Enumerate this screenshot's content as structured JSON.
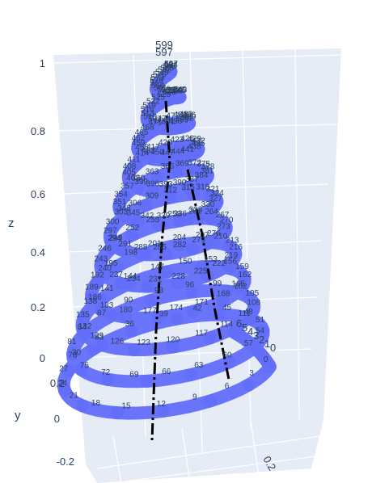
{
  "chart_data": {
    "type": "scatter3d",
    "point_labels": "index 0..599",
    "point_count": 600,
    "z_range": [
      0,
      1
    ],
    "z_ticks": [
      "0",
      "0.2",
      "0.4",
      "0.6",
      "0.8",
      "1"
    ],
    "y_ticks": [
      "-0.2",
      "0",
      "0.2"
    ],
    "x_ticks": [
      "0.2"
    ],
    "z_axis_title": "z",
    "y_axis_title": "y",
    "x_axis_title": "",
    "top_labels": [
      "599",
      "597"
    ],
    "right_end_labels": [
      "6",
      "5",
      "4",
      "3",
      "2",
      "1",
      "0"
    ],
    "bottom_labels": [
      "5",
      "5",
      "4",
      "5",
      "5",
      "4",
      "6",
      "5",
      "6",
      "6",
      "6",
      "2"
    ],
    "marker_color": "#636efa",
    "text_color": "#2a3f5f",
    "line_color": "#000000",
    "scene_bgcolor": "#e5ecf6",
    "grid_color": "#ffffff",
    "grid": true
  }
}
